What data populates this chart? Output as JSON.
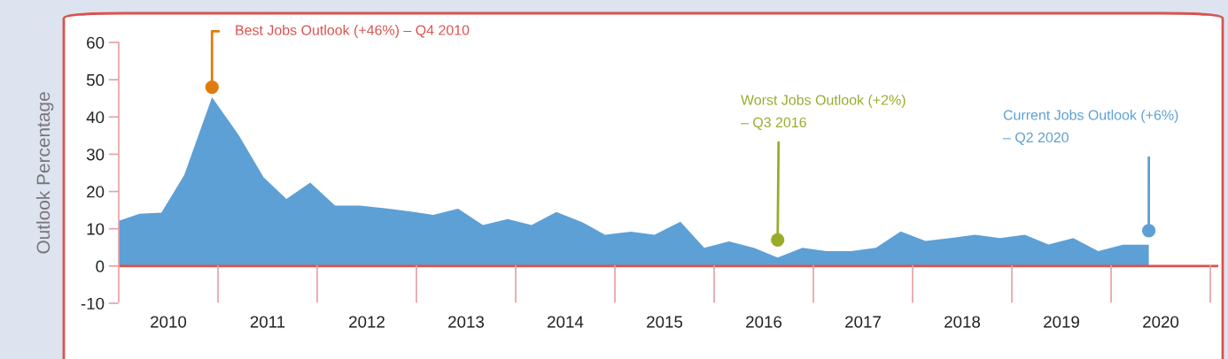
{
  "chart_data": {
    "type": "area",
    "ylabel": "Outlook Percentage",
    "x": [
      2010.0,
      2010.21,
      2010.43,
      2010.66,
      2010.94,
      2011.21,
      2011.46,
      2011.69,
      2011.93,
      2012.18,
      2012.43,
      2012.68,
      2012.93,
      2013.17,
      2013.42,
      2013.67,
      2013.92,
      2014.16,
      2014.41,
      2014.67,
      2014.9,
      2015.16,
      2015.4,
      2015.66,
      2015.9,
      2016.15,
      2016.4,
      2016.64,
      2016.89,
      2017.13,
      2017.38,
      2017.63,
      2017.88,
      2018.13,
      2018.38,
      2018.63,
      2018.88,
      2019.13,
      2019.37,
      2019.62,
      2019.87,
      2020.12,
      2020.38
    ],
    "series": [
      {
        "color": "#5da0d5",
        "values": [
          12.1,
          14.0,
          14.3,
          24.4,
          45.3,
          35.1,
          23.8,
          18.0,
          22.4,
          16.2,
          16.2,
          15.5,
          14.7,
          13.7,
          15.4,
          11.0,
          12.6,
          11.0,
          14.5,
          11.8,
          8.4,
          9.2,
          8.4,
          11.9,
          4.9,
          6.6,
          4.9,
          2.3,
          4.9,
          4.0,
          4.0,
          4.9,
          9.3,
          6.7,
          7.5,
          8.4,
          7.5,
          8.4,
          5.8,
          7.5,
          4.0,
          5.7,
          5.7
        ]
      }
    ],
    "xlim": [
      2010,
      2021.08
    ],
    "xticks": [
      {
        "value": 2010.5,
        "label": "2010"
      },
      {
        "value": 2011.5,
        "label": "2011"
      },
      {
        "value": 2012.5,
        "label": "2012"
      },
      {
        "value": 2013.5,
        "label": "2013"
      },
      {
        "value": 2014.5,
        "label": "2014"
      },
      {
        "value": 2015.5,
        "label": "2015"
      },
      {
        "value": 2016.5,
        "label": "2016"
      },
      {
        "value": 2017.5,
        "label": "2017"
      },
      {
        "value": 2018.5,
        "label": "2018"
      },
      {
        "value": 2019.5,
        "label": "2019"
      },
      {
        "value": 2020.5,
        "label": "2020"
      }
    ],
    "ylim": [
      -10,
      60
    ],
    "yticks": [
      -10,
      0,
      10,
      20,
      30,
      40,
      50,
      60
    ],
    "grid": false,
    "legend": false,
    "ref_lines": [
      {
        "axis": "y",
        "value": 0,
        "color": "#d9534f"
      },
      {
        "axis": "x",
        "value": 2011,
        "color": "#e6a0a4"
      },
      {
        "axis": "x",
        "value": 2012,
        "color": "#e6a0a4"
      },
      {
        "axis": "x",
        "value": 2013,
        "color": "#e6a0a4"
      },
      {
        "axis": "x",
        "value": 2014,
        "color": "#e6a0a4"
      },
      {
        "axis": "x",
        "value": 2015,
        "color": "#e6a0a4"
      },
      {
        "axis": "x",
        "value": 2016,
        "color": "#e6a0a4"
      },
      {
        "axis": "x",
        "value": 2017,
        "color": "#e6a0a4"
      },
      {
        "axis": "x",
        "value": 2018,
        "color": "#e6a0a4"
      },
      {
        "axis": "x",
        "value": 2019,
        "color": "#e6a0a4"
      },
      {
        "axis": "x",
        "value": 2020,
        "color": "#e6a0a4"
      },
      {
        "axis": "x",
        "value": 2021,
        "color": "#e6a0a4"
      }
    ],
    "annotations": [
      {
        "text": "Best Jobs Outlook (+46%) – Q4 2010",
        "x": 2010.94,
        "y": 48
      },
      {
        "text": "Worst Jobs Outlook (+2%)\n– Q3 2016",
        "x": 2016.64,
        "y": 7
      },
      {
        "text": "Current Jobs Outlook (+6%)\n– Q2 2020",
        "x": 2020.38,
        "y": 9.5
      }
    ]
  }
}
